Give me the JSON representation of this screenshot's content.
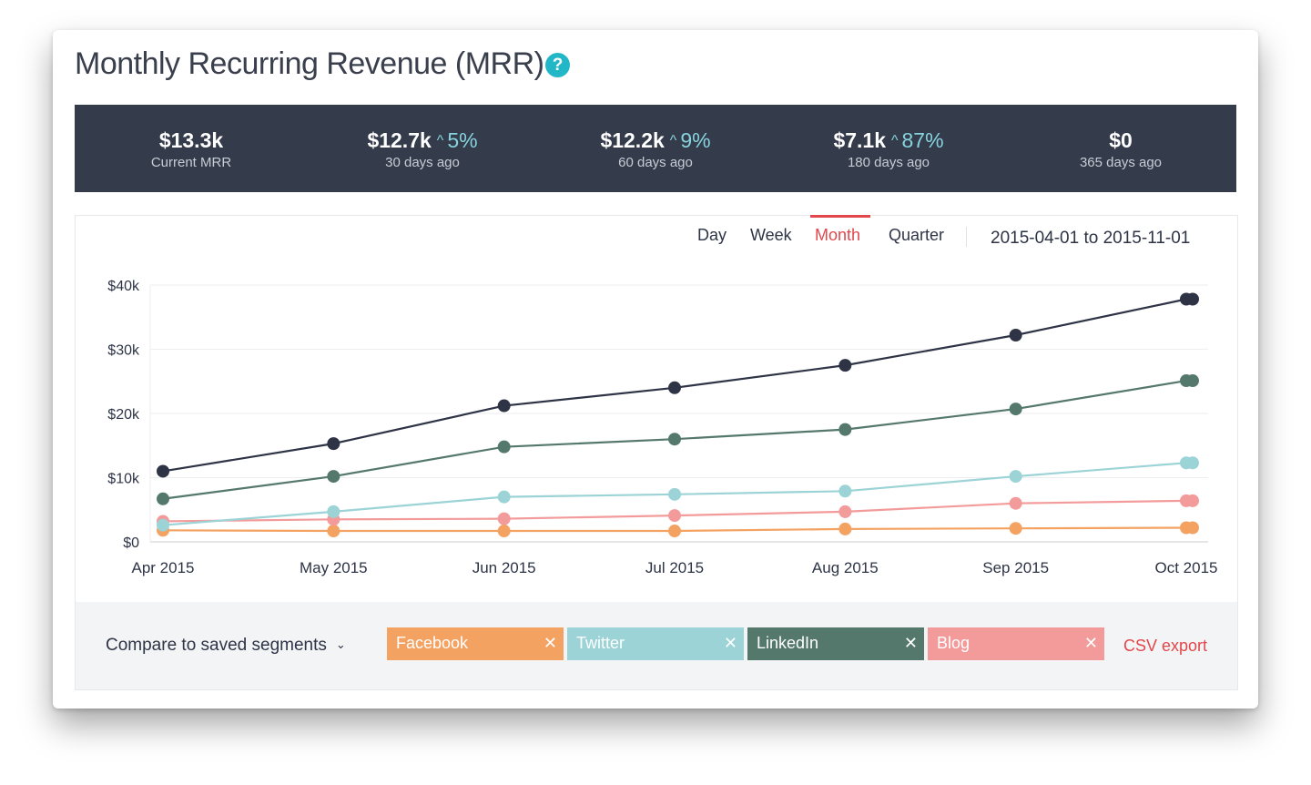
{
  "page": {
    "title": "Monthly Recurring Revenue (MRR)",
    "help_glyph": "?"
  },
  "stats": [
    {
      "value": "$13.3k",
      "change": "",
      "label": "Current MRR"
    },
    {
      "value": "$12.7k",
      "change": "5%",
      "label": "30 days ago"
    },
    {
      "value": "$12.2k",
      "change": "9%",
      "label": "60 days ago"
    },
    {
      "value": "$7.1k",
      "change": "87%",
      "label": "180 days ago"
    },
    {
      "value": "$0",
      "change": "",
      "label": "365 days ago"
    }
  ],
  "periods": {
    "items": [
      "Day",
      "Week",
      "Month",
      "Quarter"
    ],
    "active": "Month"
  },
  "date_range": "2015-04-01 to 2015-11-01",
  "footer": {
    "compare_label": "Compare to saved segments",
    "compare_icon": "chevron-down-icon",
    "segments": [
      "Facebook",
      "Twitter",
      "LinkedIn",
      "Blog"
    ],
    "remove_glyph": "✕",
    "csv_label": "CSV export"
  },
  "colors": {
    "accent": "#e2474c",
    "help": "#21b7c7",
    "stats_bg": "#343b4b",
    "change": "#86d4dd"
  },
  "chart_data": {
    "type": "line",
    "x": [
      "Apr 2015",
      "May 2015",
      "Jun 2015",
      "Jul 2015",
      "Aug 2015",
      "Sep 2015",
      "Oct 2015"
    ],
    "y_ticks": [
      "$0",
      "$10k",
      "$20k",
      "$30k",
      "$40k"
    ],
    "ylim": [
      0,
      40000
    ],
    "grid": true,
    "series": [
      {
        "color": "#2e3446",
        "values": [
          11000,
          15300,
          21200,
          24000,
          27500,
          32200,
          37800
        ]
      },
      {
        "color": "#55786d",
        "values": [
          6700,
          10200,
          14800,
          16000,
          17500,
          20700,
          25100
        ]
      },
      {
        "color": "#9bd3d6",
        "values": [
          2600,
          4700,
          7000,
          7400,
          7900,
          10200,
          12300
        ]
      },
      {
        "color": "#f39b9b",
        "values": [
          3200,
          3500,
          3600,
          4100,
          4700,
          6000,
          6400
        ]
      },
      {
        "color": "#f4a262",
        "values": [
          1800,
          1700,
          1700,
          1700,
          2000,
          2100,
          2200
        ]
      }
    ],
    "segment_colors": [
      "#f4a262",
      "#9bd3d6",
      "#55786d",
      "#f39b9b"
    ]
  }
}
